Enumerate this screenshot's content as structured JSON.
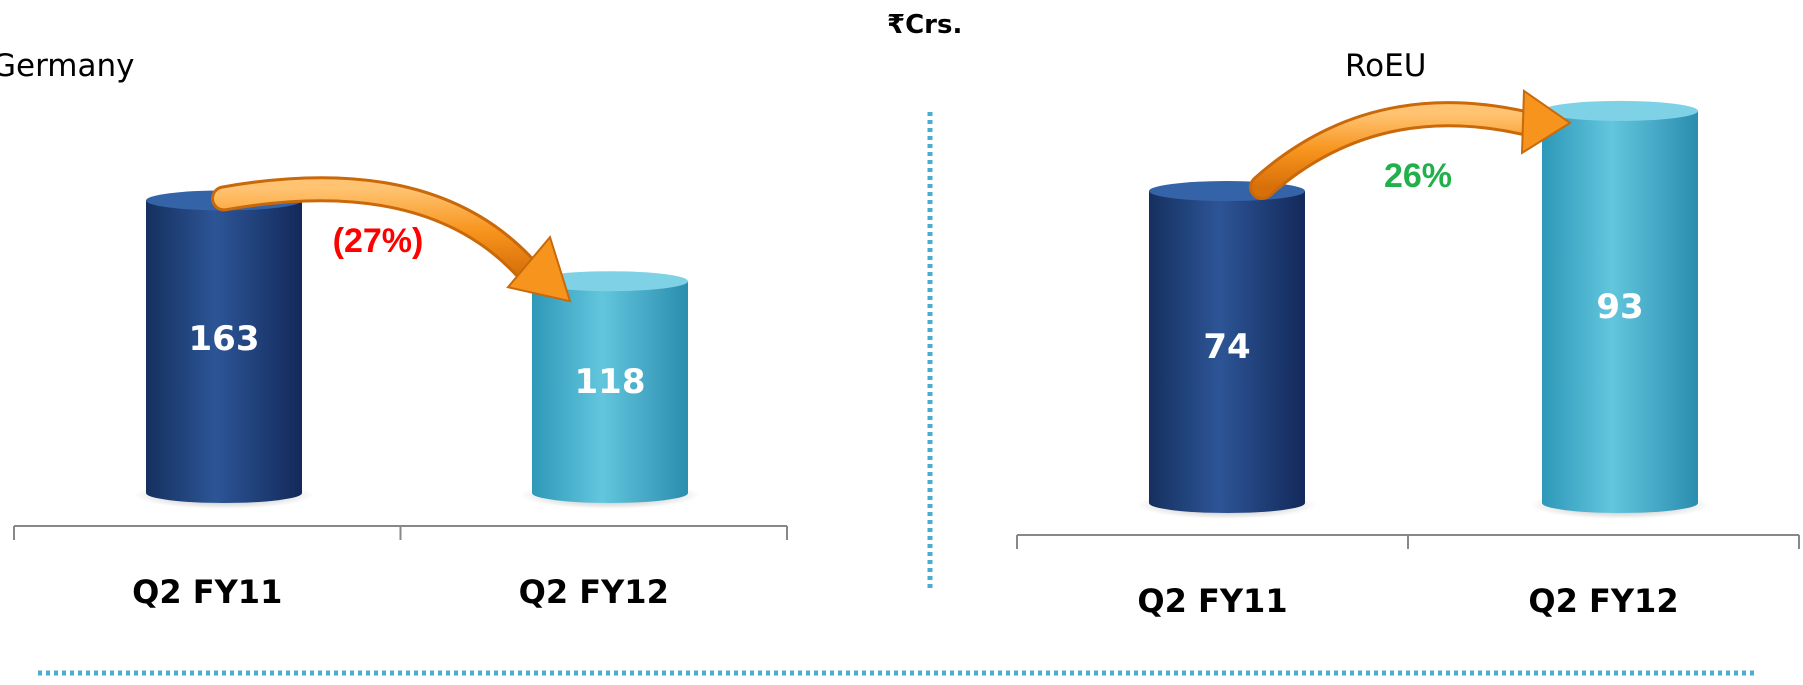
{
  "unit_label": "₹Crs.",
  "colors": {
    "bar_dark": "#1f3f78",
    "bar_light": "#45b4d0",
    "arrow": "#f7941d",
    "negative": "#ff0000",
    "positive": "#22b04b",
    "divider": "#4aaed0"
  },
  "chart_data": [
    {
      "type": "bar",
      "title": "Germany",
      "categories": [
        "Q2 FY11",
        "Q2 FY12"
      ],
      "values": [
        163,
        118
      ],
      "value_labels": [
        "163",
        "118"
      ],
      "change_label": "(27%)",
      "change_direction": "down",
      "bar_style": "3d-cylinder"
    },
    {
      "type": "bar",
      "title": "RoEU",
      "categories": [
        "Q2 FY11",
        "Q2 FY12"
      ],
      "values": [
        74,
        93
      ],
      "value_labels": [
        "74",
        "93"
      ],
      "change_label": "26%",
      "change_direction": "up",
      "bar_style": "3d-cylinder"
    }
  ]
}
